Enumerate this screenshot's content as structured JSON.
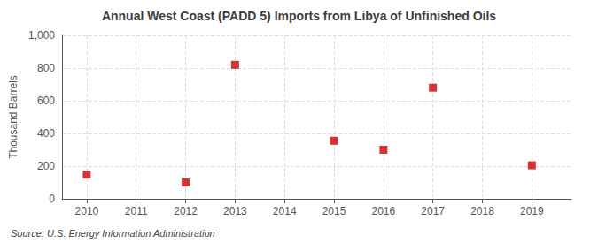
{
  "chart_data": {
    "type": "scatter",
    "title": "Annual West Coast (PADD 5) Imports from Libya of Unfinished Oils",
    "ylabel": "Thousand Barrels",
    "annotation": "Source: U.S. Energy Information Administration",
    "x": [
      2010,
      2012,
      2013,
      2015,
      2016,
      2017,
      2019
    ],
    "values": [
      148,
      100,
      820,
      355,
      300,
      680,
      205
    ],
    "color": "#cc0000",
    "marker": "square",
    "xlim": [
      2009.5,
      2019.8
    ],
    "xticks": [
      2010,
      2011,
      2012,
      2013,
      2014,
      2015,
      2016,
      2017,
      2018,
      2019
    ],
    "ylim": [
      0,
      1000
    ],
    "yticks": [
      0,
      200,
      400,
      600,
      800,
      {
        "value": 1000,
        "label": "1,000"
      }
    ],
    "grid": true
  }
}
